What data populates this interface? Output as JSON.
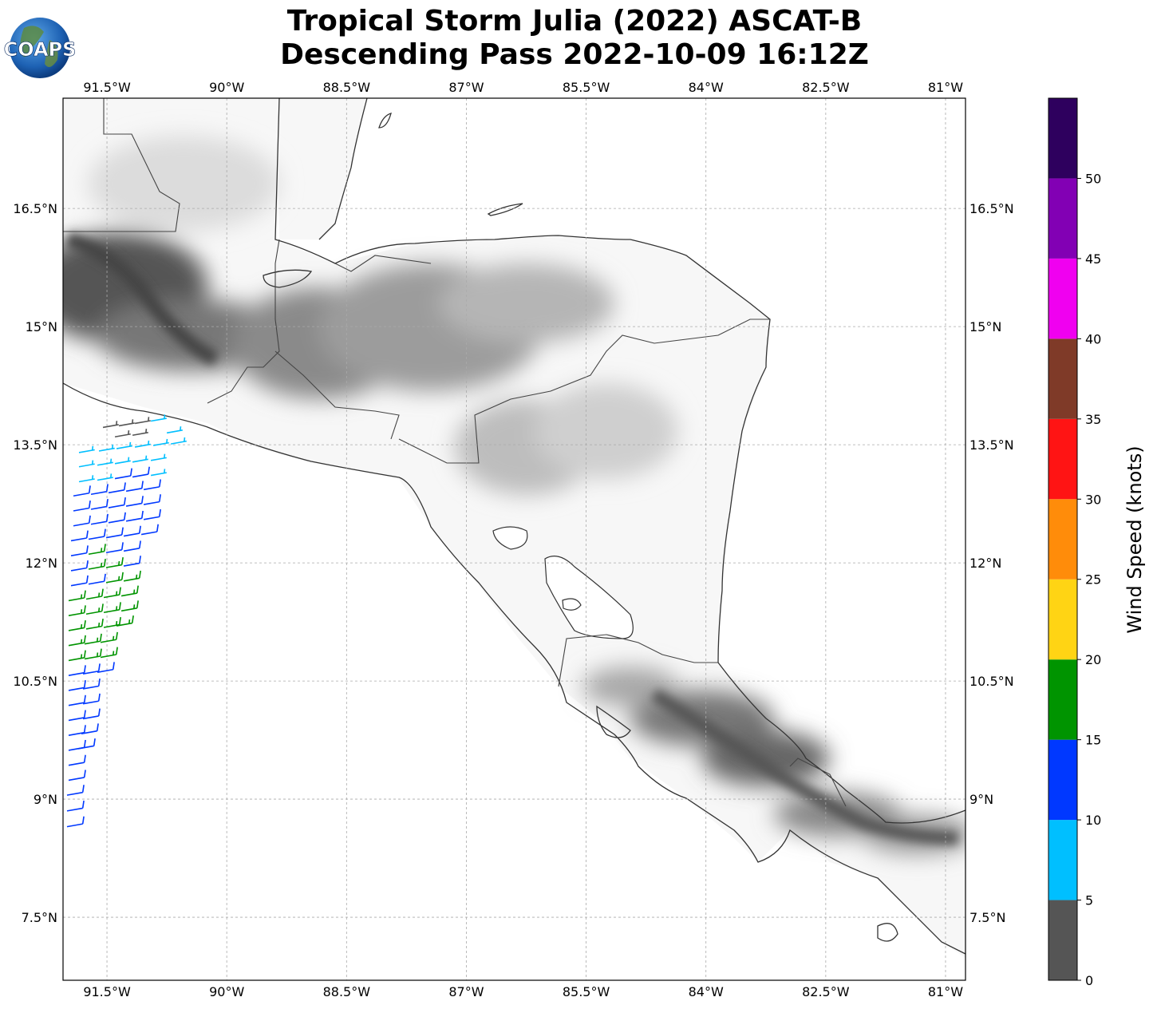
{
  "title": {
    "line1": "Tropical Storm Julia (2022) ASCAT-B",
    "line2": "Descending Pass 2022-10-09 16:12Z"
  },
  "logo": {
    "text": "COAPS"
  },
  "map": {
    "lon_range": [
      -92.05,
      -80.75
    ],
    "lat_range": [
      6.7,
      17.9
    ],
    "lon_ticks": [
      {
        "value": -91.5,
        "label": "91.5°W"
      },
      {
        "value": -90,
        "label": "90°W"
      },
      {
        "value": -88.5,
        "label": "88.5°W"
      },
      {
        "value": -87,
        "label": "87°W"
      },
      {
        "value": -85.5,
        "label": "85.5°W"
      },
      {
        "value": -84,
        "label": "84°W"
      },
      {
        "value": -82.5,
        "label": "82.5°W"
      },
      {
        "value": -81,
        "label": "81°W"
      }
    ],
    "lat_ticks": [
      {
        "value": 16.5,
        "label": "16.5°N"
      },
      {
        "value": 15,
        "label": "15°N"
      },
      {
        "value": 13.5,
        "label": "13.5°N"
      },
      {
        "value": 12,
        "label": "12°N"
      },
      {
        "value": 10.5,
        "label": "10.5°N"
      },
      {
        "value": 9,
        "label": "9°N"
      },
      {
        "value": 7.5,
        "label": "7.5°N"
      }
    ],
    "grid": true,
    "coastline_color": "#333333",
    "terrain": "grayscale"
  },
  "colorbar": {
    "label": "Wind Speed (knots)",
    "range": [
      0,
      55
    ],
    "bins": [
      {
        "from": 0,
        "to": 5,
        "color": "#555555"
      },
      {
        "from": 5,
        "to": 10,
        "color": "#00bfff"
      },
      {
        "from": 10,
        "to": 15,
        "color": "#0038ff"
      },
      {
        "from": 15,
        "to": 20,
        "color": "#009400"
      },
      {
        "from": 20,
        "to": 25,
        "color": "#ffd414"
      },
      {
        "from": 25,
        "to": 30,
        "color": "#ff8c0a"
      },
      {
        "from": 30,
        "to": 35,
        "color": "#ff1414"
      },
      {
        "from": 35,
        "to": 40,
        "color": "#7f3a28"
      },
      {
        "from": 40,
        "to": 45,
        "color": "#f000f0"
      },
      {
        "from": 45,
        "to": 50,
        "color": "#8200b4"
      },
      {
        "from": 50,
        "to": 55,
        "color": "#2e005e"
      }
    ],
    "ticks": [
      {
        "value": 0,
        "label": "0"
      },
      {
        "value": 5,
        "label": "5"
      },
      {
        "value": 10,
        "label": "10"
      },
      {
        "value": 15,
        "label": "15"
      },
      {
        "value": 20,
        "label": "20"
      },
      {
        "value": 25,
        "label": "25"
      },
      {
        "value": 30,
        "label": "30"
      },
      {
        "value": 35,
        "label": "35"
      },
      {
        "value": 40,
        "label": "40"
      },
      {
        "value": 45,
        "label": "45"
      },
      {
        "value": 50,
        "label": "50"
      }
    ]
  },
  "wind_barbs": [
    {
      "lat": 13.72,
      "lon": -91.55,
      "speed": 4
    },
    {
      "lat": 13.74,
      "lon": -91.35,
      "speed": 4
    },
    {
      "lat": 13.77,
      "lon": -91.15,
      "speed": 4
    },
    {
      "lat": 13.8,
      "lon": -90.95,
      "speed": 6
    },
    {
      "lat": 13.6,
      "lon": -91.4,
      "speed": 4
    },
    {
      "lat": 13.62,
      "lon": -91.18,
      "speed": 4
    },
    {
      "lat": 13.65,
      "lon": -90.75,
      "speed": 7
    },
    {
      "lat": 13.4,
      "lon": -91.85,
      "speed": 7
    },
    {
      "lat": 13.42,
      "lon": -91.6,
      "speed": 7
    },
    {
      "lat": 13.45,
      "lon": -91.38,
      "speed": 7
    },
    {
      "lat": 13.47,
      "lon": -91.15,
      "speed": 6
    },
    {
      "lat": 13.49,
      "lon": -90.92,
      "speed": 7
    },
    {
      "lat": 13.51,
      "lon": -90.7,
      "speed": 7
    },
    {
      "lat": 13.22,
      "lon": -91.85,
      "speed": 7
    },
    {
      "lat": 13.24,
      "lon": -91.62,
      "speed": 7
    },
    {
      "lat": 13.26,
      "lon": -91.4,
      "speed": 7
    },
    {
      "lat": 13.28,
      "lon": -91.18,
      "speed": 7
    },
    {
      "lat": 13.3,
      "lon": -90.95,
      "speed": 7
    },
    {
      "lat": 13.03,
      "lon": -91.85,
      "speed": 7
    },
    {
      "lat": 13.05,
      "lon": -91.62,
      "speed": 7
    },
    {
      "lat": 13.07,
      "lon": -91.4,
      "speed": 12
    },
    {
      "lat": 13.09,
      "lon": -91.18,
      "speed": 12
    },
    {
      "lat": 13.11,
      "lon": -90.95,
      "speed": 7
    },
    {
      "lat": 12.85,
      "lon": -91.92,
      "speed": 12
    },
    {
      "lat": 12.87,
      "lon": -91.7,
      "speed": 12
    },
    {
      "lat": 12.89,
      "lon": -91.48,
      "speed": 12
    },
    {
      "lat": 12.91,
      "lon": -91.26,
      "speed": 12
    },
    {
      "lat": 12.93,
      "lon": -91.04,
      "speed": 12
    },
    {
      "lat": 12.66,
      "lon": -91.92,
      "speed": 12
    },
    {
      "lat": 12.68,
      "lon": -91.7,
      "speed": 12
    },
    {
      "lat": 12.7,
      "lon": -91.48,
      "speed": 12
    },
    {
      "lat": 12.72,
      "lon": -91.26,
      "speed": 12
    },
    {
      "lat": 12.74,
      "lon": -91.04,
      "speed": 12
    },
    {
      "lat": 12.47,
      "lon": -91.92,
      "speed": 12
    },
    {
      "lat": 12.49,
      "lon": -91.7,
      "speed": 12
    },
    {
      "lat": 12.51,
      "lon": -91.48,
      "speed": 12
    },
    {
      "lat": 12.53,
      "lon": -91.26,
      "speed": 12
    },
    {
      "lat": 12.55,
      "lon": -91.04,
      "speed": 12
    },
    {
      "lat": 12.28,
      "lon": -91.95,
      "speed": 12
    },
    {
      "lat": 12.3,
      "lon": -91.73,
      "speed": 12
    },
    {
      "lat": 12.32,
      "lon": -91.51,
      "speed": 12
    },
    {
      "lat": 12.34,
      "lon": -91.29,
      "speed": 12
    },
    {
      "lat": 12.36,
      "lon": -91.07,
      "speed": 12
    },
    {
      "lat": 12.09,
      "lon": -91.95,
      "speed": 12
    },
    {
      "lat": 12.11,
      "lon": -91.73,
      "speed": 17
    },
    {
      "lat": 12.13,
      "lon": -91.51,
      "speed": 12
    },
    {
      "lat": 12.15,
      "lon": -91.29,
      "speed": 12
    },
    {
      "lat": 11.9,
      "lon": -91.95,
      "speed": 12
    },
    {
      "lat": 11.92,
      "lon": -91.73,
      "speed": 17
    },
    {
      "lat": 11.94,
      "lon": -91.51,
      "speed": 17
    },
    {
      "lat": 11.96,
      "lon": -91.29,
      "speed": 12
    },
    {
      "lat": 11.71,
      "lon": -91.95,
      "speed": 12
    },
    {
      "lat": 11.73,
      "lon": -91.73,
      "speed": 12
    },
    {
      "lat": 11.75,
      "lon": -91.51,
      "speed": 17
    },
    {
      "lat": 11.77,
      "lon": -91.29,
      "speed": 17
    },
    {
      "lat": 11.52,
      "lon": -91.98,
      "speed": 17
    },
    {
      "lat": 11.54,
      "lon": -91.76,
      "speed": 17
    },
    {
      "lat": 11.56,
      "lon": -91.54,
      "speed": 17
    },
    {
      "lat": 11.58,
      "lon": -91.32,
      "speed": 17
    },
    {
      "lat": 11.33,
      "lon": -91.98,
      "speed": 17
    },
    {
      "lat": 11.35,
      "lon": -91.76,
      "speed": 17
    },
    {
      "lat": 11.37,
      "lon": -91.54,
      "speed": 17
    },
    {
      "lat": 11.39,
      "lon": -91.32,
      "speed": 17
    },
    {
      "lat": 11.14,
      "lon": -91.98,
      "speed": 17
    },
    {
      "lat": 11.16,
      "lon": -91.76,
      "speed": 17
    },
    {
      "lat": 11.18,
      "lon": -91.54,
      "speed": 17
    },
    {
      "lat": 11.2,
      "lon": -91.38,
      "speed": 17
    },
    {
      "lat": 10.95,
      "lon": -91.98,
      "speed": 17
    },
    {
      "lat": 10.97,
      "lon": -91.78,
      "speed": 17
    },
    {
      "lat": 10.99,
      "lon": -91.58,
      "speed": 17
    },
    {
      "lat": 10.76,
      "lon": -91.98,
      "speed": 17
    },
    {
      "lat": 10.78,
      "lon": -91.78,
      "speed": 17
    },
    {
      "lat": 10.8,
      "lon": -91.58,
      "speed": 17
    },
    {
      "lat": 10.57,
      "lon": -91.98,
      "speed": 12
    },
    {
      "lat": 10.59,
      "lon": -91.8,
      "speed": 12
    },
    {
      "lat": 10.61,
      "lon": -91.62,
      "speed": 12
    },
    {
      "lat": 10.38,
      "lon": -91.98,
      "speed": 12
    },
    {
      "lat": 10.4,
      "lon": -91.8,
      "speed": 12
    },
    {
      "lat": 10.19,
      "lon": -91.98,
      "speed": 12
    },
    {
      "lat": 10.21,
      "lon": -91.8,
      "speed": 12
    },
    {
      "lat": 10.0,
      "lon": -91.98,
      "speed": 12
    },
    {
      "lat": 10.02,
      "lon": -91.8,
      "speed": 12
    },
    {
      "lat": 9.81,
      "lon": -91.98,
      "speed": 12
    },
    {
      "lat": 9.83,
      "lon": -91.82,
      "speed": 12
    },
    {
      "lat": 9.62,
      "lon": -91.98,
      "speed": 12
    },
    {
      "lat": 9.64,
      "lon": -91.86,
      "speed": 12
    },
    {
      "lat": 9.43,
      "lon": -91.98,
      "speed": 12
    },
    {
      "lat": 9.24,
      "lon": -91.98,
      "speed": 12
    },
    {
      "lat": 9.05,
      "lon": -92.0,
      "speed": 12
    },
    {
      "lat": 8.85,
      "lon": -92.0,
      "speed": 12
    },
    {
      "lat": 8.65,
      "lon": -92.0,
      "speed": 12
    }
  ]
}
